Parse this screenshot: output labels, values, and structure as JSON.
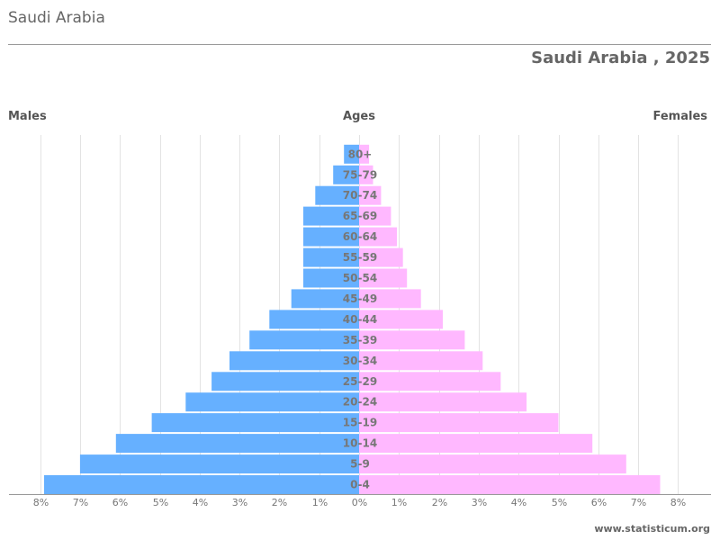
{
  "window": {
    "title": "Saudi Arabia"
  },
  "chart_data": {
    "type": "bar",
    "orientation": "horizontal",
    "layout": "population-pyramid",
    "title": "Saudi Arabia , 2025",
    "left_label": "Males",
    "center_label": "Ages",
    "right_label": "Females",
    "categories": [
      "0-4",
      "5-9",
      "10-14",
      "15-19",
      "20-24",
      "25-29",
      "30-34",
      "35-39",
      "40-44",
      "45-49",
      "50-54",
      "55-59",
      "60-64",
      "65-69",
      "70-74",
      "75-79",
      "80+"
    ],
    "series": [
      {
        "name": "Males",
        "side": "left",
        "color": "#66b0ff",
        "values": [
          7.9,
          7.0,
          6.1,
          5.2,
          4.35,
          3.7,
          3.25,
          2.75,
          2.25,
          1.7,
          1.4,
          1.4,
          1.4,
          1.4,
          1.1,
          0.65,
          0.38
        ]
      },
      {
        "name": "Females",
        "side": "right",
        "color": "#ffb8ff",
        "values": [
          7.55,
          6.7,
          5.85,
          5.0,
          4.2,
          3.55,
          3.1,
          2.65,
          2.1,
          1.55,
          1.2,
          1.1,
          0.95,
          0.8,
          0.55,
          0.35,
          0.25
        ]
      }
    ],
    "x_ticks": [
      "8%",
      "7%",
      "6%",
      "5%",
      "4%",
      "3%",
      "2%",
      "1%",
      "0%",
      "1%",
      "2%",
      "3%",
      "4%",
      "5%",
      "6%",
      "7%",
      "8%"
    ],
    "xlim": [
      -8,
      8
    ],
    "grid": true,
    "credit": "www.statisticum.org"
  }
}
